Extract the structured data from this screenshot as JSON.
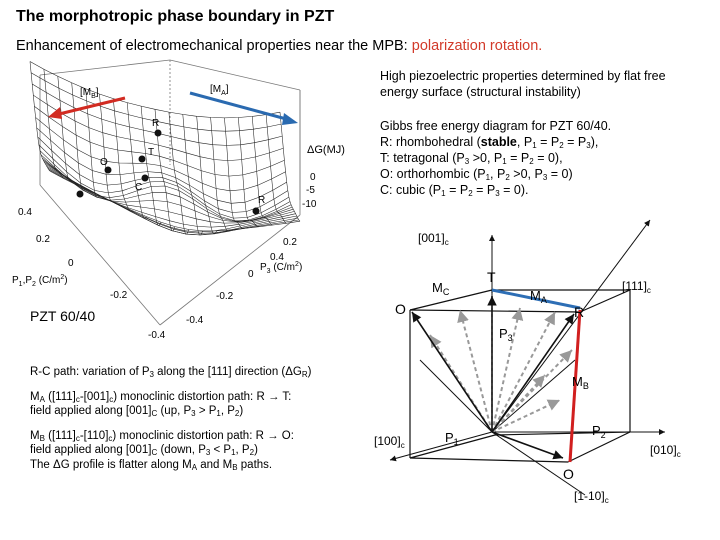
{
  "title": "The morphotropic phase boundary in PZT",
  "subtitle": {
    "lead": "Enhancement of electromechanical properties near the MPB: ",
    "highlight": "polarization rotation."
  },
  "note": {
    "line1": "High piezoelectric properties determined by flat free",
    "line2": "energy surface (structural instability)"
  },
  "gibbs": {
    "heading": "Gibbs free energy diagram for PZT 60/40.",
    "r_pre": "R: rhombohedral (",
    "r_bold": "stable",
    "r_post": ", P",
    "t_line": "T: tetragonal (P",
    "o_line": "O: orthorhombic (P",
    "c_line": "C: cubic (P"
  },
  "surface": {
    "mb": "[M",
    "ma": "[M",
    "dg_label": "ΔG(MJ)",
    "dg_ticks": [
      "0",
      "-5",
      "-10"
    ],
    "p12_label": "P",
    "p3_label": "P",
    "p12_ticks": [
      "0.4",
      "0.2",
      "0",
      "-0.2",
      "-0.4"
    ],
    "p3_ticks": [
      "0.2",
      "0.4",
      "0",
      "-0.2",
      "-0.4"
    ],
    "points": [
      "R",
      "T",
      "O",
      "C",
      "R"
    ],
    "c_axis_unit": "(C/m",
    "colors": {
      "mb_arrow": "#d22b22",
      "ma_arrow": "#2a6ab0"
    }
  },
  "pzt_label": "PZT 60/40",
  "paths": {
    "rc": "R-C path: variation of P",
    "ma_line1": "M",
    "ma_line2": "field applied along [001]",
    "mb_line1": "M",
    "mb_line2": "field applied along [001]",
    "flatter": "The ΔG profile is flatter along M"
  },
  "cube": {
    "dir_001": "[001]",
    "dir_111": "[111]",
    "dir_100": "[100]",
    "dir_010": "[010]",
    "dir_1m10": "[1-10]",
    "sub_c": "c",
    "mc": "M",
    "ma": "M",
    "mb": "M",
    "t": "T",
    "o_left": "O",
    "r": "R",
    "p3": "P",
    "p1": "P",
    "p2": "P",
    "o_bottom": "O",
    "colors": {
      "red": "#d11f1f",
      "blue": "#2d6eb5"
    }
  }
}
